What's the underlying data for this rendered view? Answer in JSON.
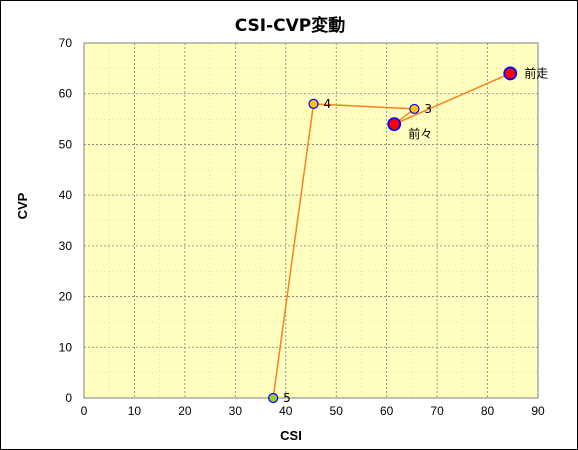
{
  "chart_data": {
    "type": "scatter",
    "title": "CSI-CVP変動",
    "xlabel": "CSI",
    "ylabel": "CVP",
    "xlim": [
      0,
      90
    ],
    "ylim": [
      0,
      70
    ],
    "x_ticks": [
      0,
      10,
      20,
      30,
      40,
      50,
      60,
      70,
      80,
      90
    ],
    "y_ticks": [
      0,
      10,
      20,
      30,
      40,
      50,
      60,
      70
    ],
    "grid": true,
    "line_color": "#ff7f1e",
    "plot_background": "#ffffc0",
    "points": [
      {
        "label": "5",
        "x": 37.5,
        "y": 0,
        "fill": "#9acd32",
        "edge": "#0000ff",
        "size": "small"
      },
      {
        "label": "4",
        "x": 45.5,
        "y": 58,
        "fill": "#ffc107",
        "edge": "#0000ff",
        "size": "small"
      },
      {
        "label": "3",
        "x": 65.5,
        "y": 57,
        "fill": "#ffc107",
        "edge": "#0000ff",
        "size": "small"
      },
      {
        "label": "前々",
        "x": 61.5,
        "y": 54,
        "fill": "#ff0000",
        "edge": "#0000ff",
        "size": "large"
      },
      {
        "label": "前走",
        "x": 84.5,
        "y": 64,
        "fill": "#ff0000",
        "edge": "#0000ff",
        "size": "large"
      }
    ]
  }
}
